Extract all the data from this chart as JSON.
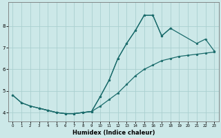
{
  "xlabel": "Humidex (Indice chaleur)",
  "bg_color": "#cce8e8",
  "grid_color": "#aacfcf",
  "line_color": "#1a6b6b",
  "xlim": [
    -0.5,
    23.5
  ],
  "ylim": [
    3.6,
    9.1
  ],
  "yticks": [
    4,
    5,
    6,
    7,
    8
  ],
  "xticks": [
    0,
    1,
    2,
    3,
    4,
    5,
    6,
    7,
    8,
    9,
    10,
    11,
    12,
    13,
    14,
    15,
    16,
    17,
    18,
    19,
    20,
    21,
    22,
    23
  ],
  "line1_x": [
    0,
    1,
    2,
    3,
    4,
    5,
    6,
    7,
    8,
    9,
    10,
    11,
    12,
    13,
    14,
    15,
    16,
    17,
    18
  ],
  "line1_y": [
    4.8,
    4.45,
    4.3,
    4.2,
    4.1,
    4.0,
    3.95,
    3.95,
    4.0,
    4.05,
    4.75,
    5.5,
    6.5,
    7.2,
    7.8,
    8.5,
    8.5,
    7.55,
    7.9
  ],
  "line2_x": [
    0,
    1,
    2,
    3,
    4,
    5,
    6,
    7,
    8,
    9,
    10,
    11,
    12,
    13,
    14,
    15,
    16,
    17,
    18,
    19,
    20,
    21,
    22,
    23
  ],
  "line2_y": [
    4.8,
    4.45,
    4.3,
    4.2,
    4.1,
    4.0,
    3.95,
    3.95,
    4.0,
    4.05,
    4.3,
    4.6,
    4.9,
    5.3,
    5.7,
    6.0,
    6.2,
    6.4,
    6.5,
    6.6,
    6.65,
    6.7,
    6.75,
    6.8
  ],
  "line3_x": [
    3,
    4,
    5,
    6,
    7,
    8,
    9,
    10,
    11,
    12,
    13,
    14,
    15,
    16,
    17,
    18,
    21,
    22,
    23
  ],
  "line3_y": [
    4.2,
    4.1,
    4.0,
    3.95,
    3.95,
    4.0,
    4.05,
    4.75,
    5.5,
    6.5,
    7.2,
    7.8,
    8.5,
    8.5,
    7.55,
    7.9,
    7.2,
    7.4,
    6.85
  ]
}
